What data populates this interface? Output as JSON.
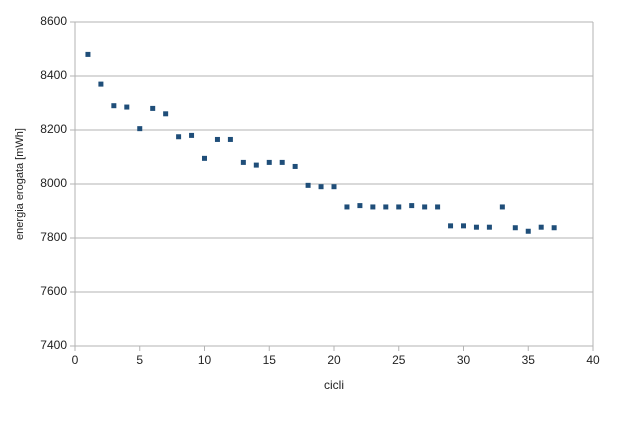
{
  "chart_data": {
    "type": "scatter",
    "x_label": "cicli",
    "y_label": "energia erogata [mWh]",
    "x": [
      1,
      2,
      3,
      4,
      5,
      6,
      7,
      8,
      9,
      10,
      11,
      12,
      13,
      14,
      15,
      16,
      17,
      18,
      19,
      20,
      21,
      22,
      23,
      24,
      25,
      26,
      27,
      28,
      29,
      30,
      31,
      32,
      33,
      34,
      35,
      36,
      37
    ],
    "values": [
      8480,
      8370,
      8290,
      8285,
      8205,
      8280,
      8260,
      8175,
      8180,
      8095,
      8165,
      8165,
      8080,
      8070,
      8080,
      8080,
      8065,
      7995,
      7990,
      7990,
      7915,
      7920,
      7915,
      7915,
      7915,
      7920,
      7915,
      7915,
      7845,
      7845,
      7840,
      7840,
      7915,
      7838,
      7825,
      7840,
      7838
    ],
    "color": "#1f4e79",
    "xlim": [
      0,
      40
    ],
    "xticks": [
      0,
      5,
      10,
      15,
      20,
      25,
      30,
      35,
      40
    ],
    "ylim": [
      7400,
      8600
    ],
    "yticks": [
      7400,
      7600,
      7800,
      8000,
      8200,
      8400,
      8600
    ],
    "grid": true
  }
}
